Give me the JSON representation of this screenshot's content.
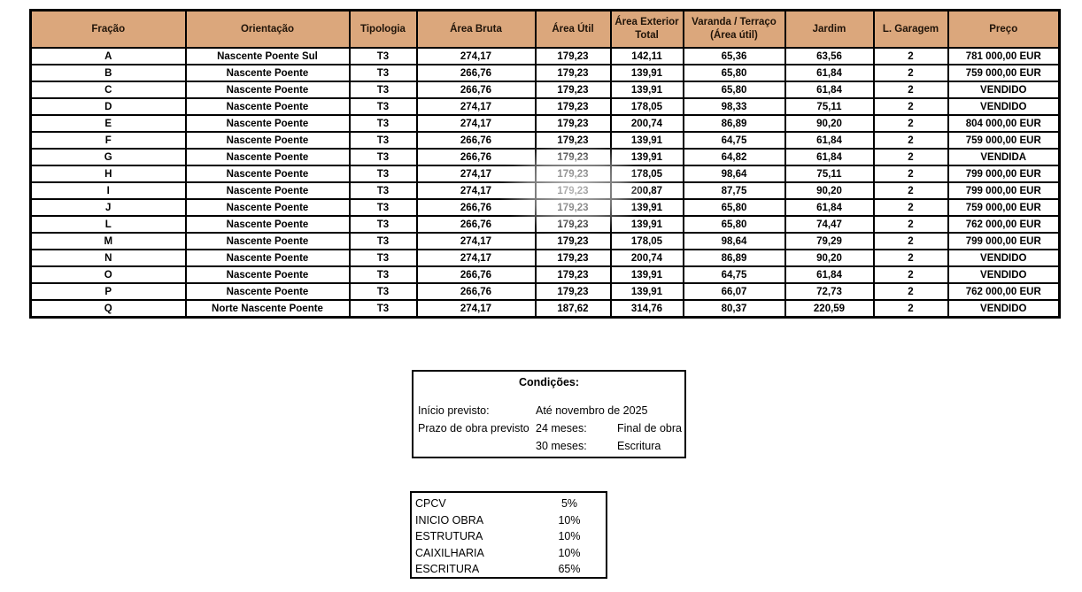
{
  "table": {
    "header_bg": "#DBA77C",
    "columns": [
      "Fração",
      "Orientação",
      "Tipologia",
      "Área Bruta",
      "Área Útil",
      "Área Exterior\nTotal",
      "Varanda / Terraço\n(Área útil)",
      "Jardim",
      "L. Garagem",
      "Preço"
    ],
    "rows": [
      [
        "A",
        "Nascente Poente Sul",
        "T3",
        "274,17",
        "179,23",
        "142,11",
        "65,36",
        "63,56",
        "2",
        "781 000,00 EUR"
      ],
      [
        "B",
        "Nascente Poente",
        "T3",
        "266,76",
        "179,23",
        "139,91",
        "65,80",
        "61,84",
        "2",
        "759 000,00 EUR"
      ],
      [
        "C",
        "Nascente Poente",
        "T3",
        "266,76",
        "179,23",
        "139,91",
        "65,80",
        "61,84",
        "2",
        "VENDIDO"
      ],
      [
        "D",
        "Nascente Poente",
        "T3",
        "274,17",
        "179,23",
        "178,05",
        "98,33",
        "75,11",
        "2",
        "VENDIDO"
      ],
      [
        "E",
        "Nascente Poente",
        "T3",
        "274,17",
        "179,23",
        "200,74",
        "86,89",
        "90,20",
        "2",
        "804 000,00 EUR"
      ],
      [
        "F",
        "Nascente Poente",
        "T3",
        "266,76",
        "179,23",
        "139,91",
        "64,75",
        "61,84",
        "2",
        "759 000,00 EUR"
      ],
      [
        "G",
        "Nascente Poente",
        "T3",
        "266,76",
        "179,23",
        "139,91",
        "64,82",
        "61,84",
        "2",
        "VENDIDA"
      ],
      [
        "H",
        "Nascente Poente",
        "T3",
        "274,17",
        "179,23",
        "178,05",
        "98,64",
        "75,11",
        "2",
        "799 000,00 EUR"
      ],
      [
        "I",
        "Nascente Poente",
        "T3",
        "274,17",
        "179,23",
        "200,87",
        "87,75",
        "90,20",
        "2",
        "799 000,00 EUR"
      ],
      [
        "J",
        "Nascente Poente",
        "T3",
        "266,76",
        "179,23",
        "139,91",
        "65,80",
        "61,84",
        "2",
        "759 000,00 EUR"
      ],
      [
        "L",
        "Nascente Poente",
        "T3",
        "266,76",
        "179,23",
        "139,91",
        "65,80",
        "74,47",
        "2",
        "762 000,00 EUR"
      ],
      [
        "M",
        "Nascente Poente",
        "T3",
        "274,17",
        "179,23",
        "178,05",
        "98,64",
        "79,29",
        "2",
        "799 000,00 EUR"
      ],
      [
        "N",
        "Nascente Poente",
        "T3",
        "274,17",
        "179,23",
        "200,74",
        "86,89",
        "90,20",
        "2",
        "VENDIDO"
      ],
      [
        "O",
        "Nascente Poente",
        "T3",
        "266,76",
        "179,23",
        "139,91",
        "64,75",
        "61,84",
        "2",
        "VENDIDO"
      ],
      [
        "P",
        "Nascente Poente",
        "T3",
        "266,76",
        "179,23",
        "139,91",
        "66,07",
        "72,73",
        "2",
        "762 000,00 EUR"
      ],
      [
        "Q",
        "Norte Nascente Poente",
        "T3",
        "274,17",
        "187,62",
        "314,76",
        "80,37",
        "220,59",
        "2",
        "VENDIDO"
      ]
    ]
  },
  "conditions": {
    "title": "Condições:",
    "rows": [
      {
        "label": "Início previsto:",
        "term": "Até novembro de 2025",
        "note": ""
      },
      {
        "label": "Prazo de obra previsto",
        "term": "24 meses:",
        "note": "Final de obra"
      },
      {
        "label": "",
        "term": "30 meses:",
        "note": "Escritura"
      }
    ]
  },
  "payment_schedule": {
    "items": [
      {
        "label": "CPCV",
        "value": "5%"
      },
      {
        "label": "INICIO OBRA",
        "value": "10%"
      },
      {
        "label": "ESTRUTURA",
        "value": "10%"
      },
      {
        "label": "CAIXILHARIA",
        "value": "10%"
      },
      {
        "label": "ESCRITURA",
        "value": "65%"
      }
    ]
  }
}
